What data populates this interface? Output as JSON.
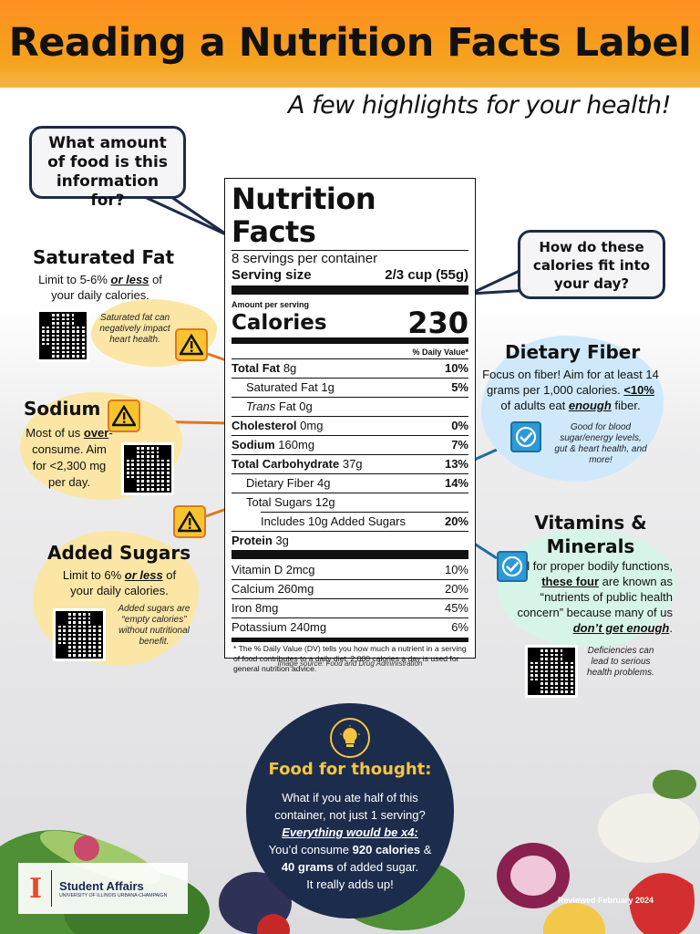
{
  "header": {
    "title": "Reading a Nutrition Facts Label",
    "subtitle": "A few highlights for your health!"
  },
  "callouts": {
    "serving_question": "What amount of food is this information for?",
    "calories_question": "How do these calories fit into your day?"
  },
  "saturated_fat": {
    "title": "Saturated Fat",
    "body_pre": "Limit to 5-6% ",
    "body_em": "or less",
    "body_post": " of your daily calories.",
    "note": "Saturated fat can negatively impact heart health."
  },
  "sodium": {
    "title": "Sodium",
    "body_pre": "Most of us ",
    "body_em": "over",
    "body_post": "-consume. Aim for <2,300 mg per day."
  },
  "added_sugars": {
    "title": "Added Sugars",
    "body_pre": "Limit to 6% ",
    "body_em": "or less",
    "body_post": " of your daily calories.",
    "note": "Added sugars are “empty calories” without nutritional benefit."
  },
  "dietary_fiber": {
    "title": "Dietary Fiber",
    "body_line1": "Focus on fiber! Aim for at least 14 grams per 1,000 calories.",
    "body_pct": "<10%",
    "body_mid": " of adults eat ",
    "body_em": "enough",
    "body_post": " fiber.",
    "note": "Good for blood sugar/energy levels, gut & heart health, and more!"
  },
  "vitamins": {
    "title": "Vitamins & Minerals",
    "body_pre": "Vital for proper bodily functions, ",
    "body_strong": "these four",
    "body_mid": " are known as “nutrients of public health concern” because many of us ",
    "body_em": "don’t get enough",
    "body_post": ".",
    "note": "Deficiencies can lead to serious health problems."
  },
  "label": {
    "heading": "Nutrition Facts",
    "servings": "8 servings per container",
    "serving_size_label": "Serving size",
    "serving_size_value": "2/3 cup (55g)",
    "amount_per_serving": "Amount per serving",
    "calories_label": "Calories",
    "calories_value": "230",
    "dv_header": "% Daily Value*",
    "rows": [
      {
        "name": "Total Fat",
        "amount": "8g",
        "dv": "10%"
      },
      {
        "name": "Saturated Fat",
        "amount": "1g",
        "dv": "5%"
      },
      {
        "name": "Trans",
        "suffix": " Fat 0g",
        "dv": ""
      },
      {
        "name": "Cholesterol",
        "amount": "0mg",
        "dv": "0%"
      },
      {
        "name": "Sodium",
        "amount": "160mg",
        "dv": "7%"
      },
      {
        "name": "Total Carbohydrate",
        "amount": "37g",
        "dv": "13%"
      },
      {
        "name": "Dietary Fiber",
        "amount": "4g",
        "dv": "14%"
      },
      {
        "name": "Total Sugars",
        "amount": "12g",
        "dv": ""
      },
      {
        "name": "Includes 10g Added Sugars",
        "amount": "",
        "dv": "20%"
      },
      {
        "name": "Protein",
        "amount": "3g",
        "dv": ""
      }
    ],
    "micros": [
      {
        "name": "Vitamin D 2mcg",
        "dv": "10%"
      },
      {
        "name": "Calcium 260mg",
        "dv": "20%"
      },
      {
        "name": "Iron 8mg",
        "dv": "45%"
      },
      {
        "name": "Potassium 240mg",
        "dv": "6%"
      }
    ],
    "footnote": "* The % Daily Value (DV) tells you how much a nutrient in a serving of food contributes to a daily diet. 2,000 calories a day is used for general nutrition advice."
  },
  "image_source": "Image source: Food and Drug Administration",
  "food_for_thought": {
    "title": "Food for thought:",
    "line1": "What if you ate half of this container, not just 1 serving?",
    "emph": "Everything would be x4:",
    "line2_pre": "You’d consume ",
    "cal": "920 calories",
    "line2_mid": " & ",
    "sugar": "40 grams",
    "line2_post": " of added sugar.",
    "line3": "It really adds up!"
  },
  "footer": {
    "org": "Student Affairs",
    "org_sub": "UNIVERSITY OF ILLINOIS URBANA-CHAMPAIGN",
    "logo_letter": "I",
    "reviewed": "Reviewed February 2024"
  },
  "colors": {
    "orange": "#f5a21e",
    "navy": "#1c2c4c",
    "yellow_blob": "#fbe6a6",
    "blue_blob": "#cfe9fb",
    "teal_blob": "#d7f4e8",
    "gold": "#f5c542"
  }
}
